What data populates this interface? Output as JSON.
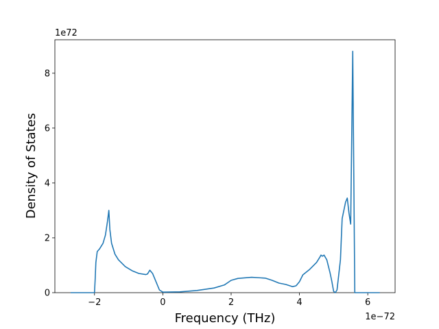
{
  "chart_data": {
    "type": "line",
    "xlabel": "Frequency (THz)",
    "ylabel": "Density of States",
    "x_offset_label": "1e−72",
    "y_offset_label": "1e72",
    "xlim": [
      -3.16,
      6.8
    ],
    "ylim": [
      0,
      9.22
    ],
    "xticks": [
      {
        "value": -2,
        "label": "−2"
      },
      0,
      2,
      4,
      6
    ],
    "yticks": [
      0,
      2,
      4,
      6,
      8
    ],
    "grid": false,
    "series": [
      {
        "color": "#1f77b4",
        "x": [
          -2.7,
          -2.0,
          -1.98,
          -1.96,
          -1.92,
          -1.85,
          -1.75,
          -1.68,
          -1.62,
          -1.58,
          -1.55,
          -1.5,
          -1.4,
          -1.3,
          -1.1,
          -0.9,
          -0.7,
          -0.5,
          -0.45,
          -0.38,
          -0.3,
          -0.2,
          -0.1,
          0,
          0.5,
          1,
          1.5,
          1.8,
          2.0,
          2.2,
          2.6,
          3.0,
          3.2,
          3.4,
          3.6,
          3.8,
          3.9,
          4.0,
          4.1,
          4.3,
          4.5,
          4.6,
          4.63,
          4.67,
          4.72,
          4.8,
          4.9,
          4.95,
          5.0,
          5.05,
          5.1,
          5.2,
          5.25,
          5.35,
          5.4,
          5.45,
          5.5,
          5.56,
          5.62,
          6.35
        ],
        "values": [
          0,
          0,
          0.5,
          1.1,
          1.5,
          1.6,
          1.8,
          2.1,
          2.6,
          3.0,
          2.3,
          1.8,
          1.4,
          1.2,
          0.95,
          0.8,
          0.7,
          0.66,
          0.68,
          0.82,
          0.7,
          0.4,
          0.1,
          0.02,
          0.03,
          0.08,
          0.17,
          0.28,
          0.45,
          0.52,
          0.56,
          0.53,
          0.45,
          0.35,
          0.3,
          0.22,
          0.25,
          0.4,
          0.65,
          0.85,
          1.1,
          1.3,
          1.37,
          1.33,
          1.37,
          1.2,
          0.7,
          0.4,
          0.05,
          0,
          0.1,
          1.2,
          2.7,
          3.3,
          3.45,
          2.9,
          2.5,
          8.8,
          0,
          0
        ]
      }
    ]
  }
}
